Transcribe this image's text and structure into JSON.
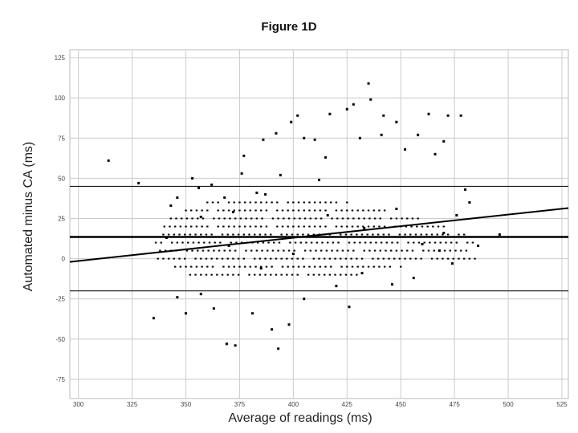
{
  "chart_data": {
    "type": "scatter",
    "title": "Figure 1D",
    "xlabel": "Average of readings (ms)",
    "ylabel": "Automated minus CA (ms)",
    "xlim": [
      296,
      528
    ],
    "ylim": [
      -87,
      130
    ],
    "x_ticks": [
      300,
      325,
      350,
      375,
      400,
      425,
      450,
      475,
      500,
      525
    ],
    "x_tick_labels": [
      "300",
      "325",
      "350",
      "375",
      "400",
      "425",
      "450",
      "475",
      "500",
      "525"
    ],
    "y_ticks": [
      125,
      100,
      75,
      50,
      25,
      0,
      -25,
      -50,
      -75
    ],
    "y_tick_labels": [
      "125",
      "100",
      "75",
      "50",
      "25",
      "0",
      "-25",
      "-50",
      "-75"
    ],
    "grid": true,
    "legend": "none",
    "reference_lines": [
      {
        "kind": "mean",
        "y": 13.5
      },
      {
        "kind": "upper-limit",
        "y": 45
      },
      {
        "kind": "lower-limit",
        "y": -20
      }
    ],
    "regression_line": {
      "x": [
        296,
        528
      ],
      "y": [
        -2,
        31.5
      ]
    },
    "points": [
      {
        "x": 314,
        "y": 61
      },
      {
        "x": 328,
        "y": 47
      },
      {
        "x": 343,
        "y": 33
      },
      {
        "x": 346,
        "y": 38
      },
      {
        "x": 335,
        "y": -37
      },
      {
        "x": 353,
        "y": 50
      },
      {
        "x": 356,
        "y": 44
      },
      {
        "x": 357,
        "y": -22
      },
      {
        "x": 362,
        "y": 46
      },
      {
        "x": 368,
        "y": 38
      },
      {
        "x": 372,
        "y": 29
      },
      {
        "x": 376,
        "y": 53
      },
      {
        "x": 377,
        "y": 64
      },
      {
        "x": 383,
        "y": 41
      },
      {
        "x": 386,
        "y": 74
      },
      {
        "x": 387,
        "y": 40
      },
      {
        "x": 392,
        "y": 78
      },
      {
        "x": 394,
        "y": 52
      },
      {
        "x": 399,
        "y": 85
      },
      {
        "x": 402,
        "y": 89
      },
      {
        "x": 405,
        "y": 75
      },
      {
        "x": 410,
        "y": 74
      },
      {
        "x": 412,
        "y": 49
      },
      {
        "x": 415,
        "y": 63
      },
      {
        "x": 417,
        "y": 90
      },
      {
        "x": 425,
        "y": 93
      },
      {
        "x": 428,
        "y": 96
      },
      {
        "x": 431,
        "y": 75
      },
      {
        "x": 435,
        "y": 109
      },
      {
        "x": 436,
        "y": 99
      },
      {
        "x": 441,
        "y": 77
      },
      {
        "x": 442,
        "y": 89
      },
      {
        "x": 448,
        "y": 85
      },
      {
        "x": 452,
        "y": 68
      },
      {
        "x": 458,
        "y": 77
      },
      {
        "x": 463,
        "y": 90
      },
      {
        "x": 466,
        "y": 65
      },
      {
        "x": 470,
        "y": 73
      },
      {
        "x": 472,
        "y": 89
      },
      {
        "x": 478,
        "y": 89
      },
      {
        "x": 480,
        "y": 43
      },
      {
        "x": 482,
        "y": 35
      },
      {
        "x": 476,
        "y": 27
      },
      {
        "x": 470,
        "y": 16
      },
      {
        "x": 468,
        "y": 5
      },
      {
        "x": 456,
        "y": -12
      },
      {
        "x": 446,
        "y": -16
      },
      {
        "x": 432,
        "y": -9
      },
      {
        "x": 426,
        "y": -30
      },
      {
        "x": 420,
        "y": -17
      },
      {
        "x": 405,
        "y": -25
      },
      {
        "x": 398,
        "y": -41
      },
      {
        "x": 393,
        "y": -56
      },
      {
        "x": 390,
        "y": -44
      },
      {
        "x": 381,
        "y": -34
      },
      {
        "x": 373,
        "y": -54
      },
      {
        "x": 369,
        "y": -53
      },
      {
        "x": 363,
        "y": -31
      },
      {
        "x": 350,
        "y": -34
      },
      {
        "x": 346,
        "y": -24
      },
      {
        "x": 341,
        "y": 13
      },
      {
        "x": 357,
        "y": 26
      },
      {
        "x": 370,
        "y": 8
      },
      {
        "x": 385,
        "y": -6
      },
      {
        "x": 400,
        "y": 3
      },
      {
        "x": 416,
        "y": 27
      },
      {
        "x": 433,
        "y": 19
      },
      {
        "x": 448,
        "y": 31
      },
      {
        "x": 460,
        "y": 9
      },
      {
        "x": 474,
        "y": -3
      },
      {
        "x": 486,
        "y": 8
      },
      {
        "x": 496,
        "y": 15
      }
    ],
    "cloud": {
      "y_levels": [
        -10,
        -5,
        0,
        5,
        10,
        15,
        20,
        25,
        30,
        35
      ],
      "x_start": [
        352,
        345,
        337,
        338,
        336,
        337,
        340,
        343,
        350,
        360
      ],
      "x_end": [
        432,
        452,
        485,
        482,
        485,
        480,
        470,
        460,
        445,
        425
      ],
      "x_step": 2.5
    }
  }
}
